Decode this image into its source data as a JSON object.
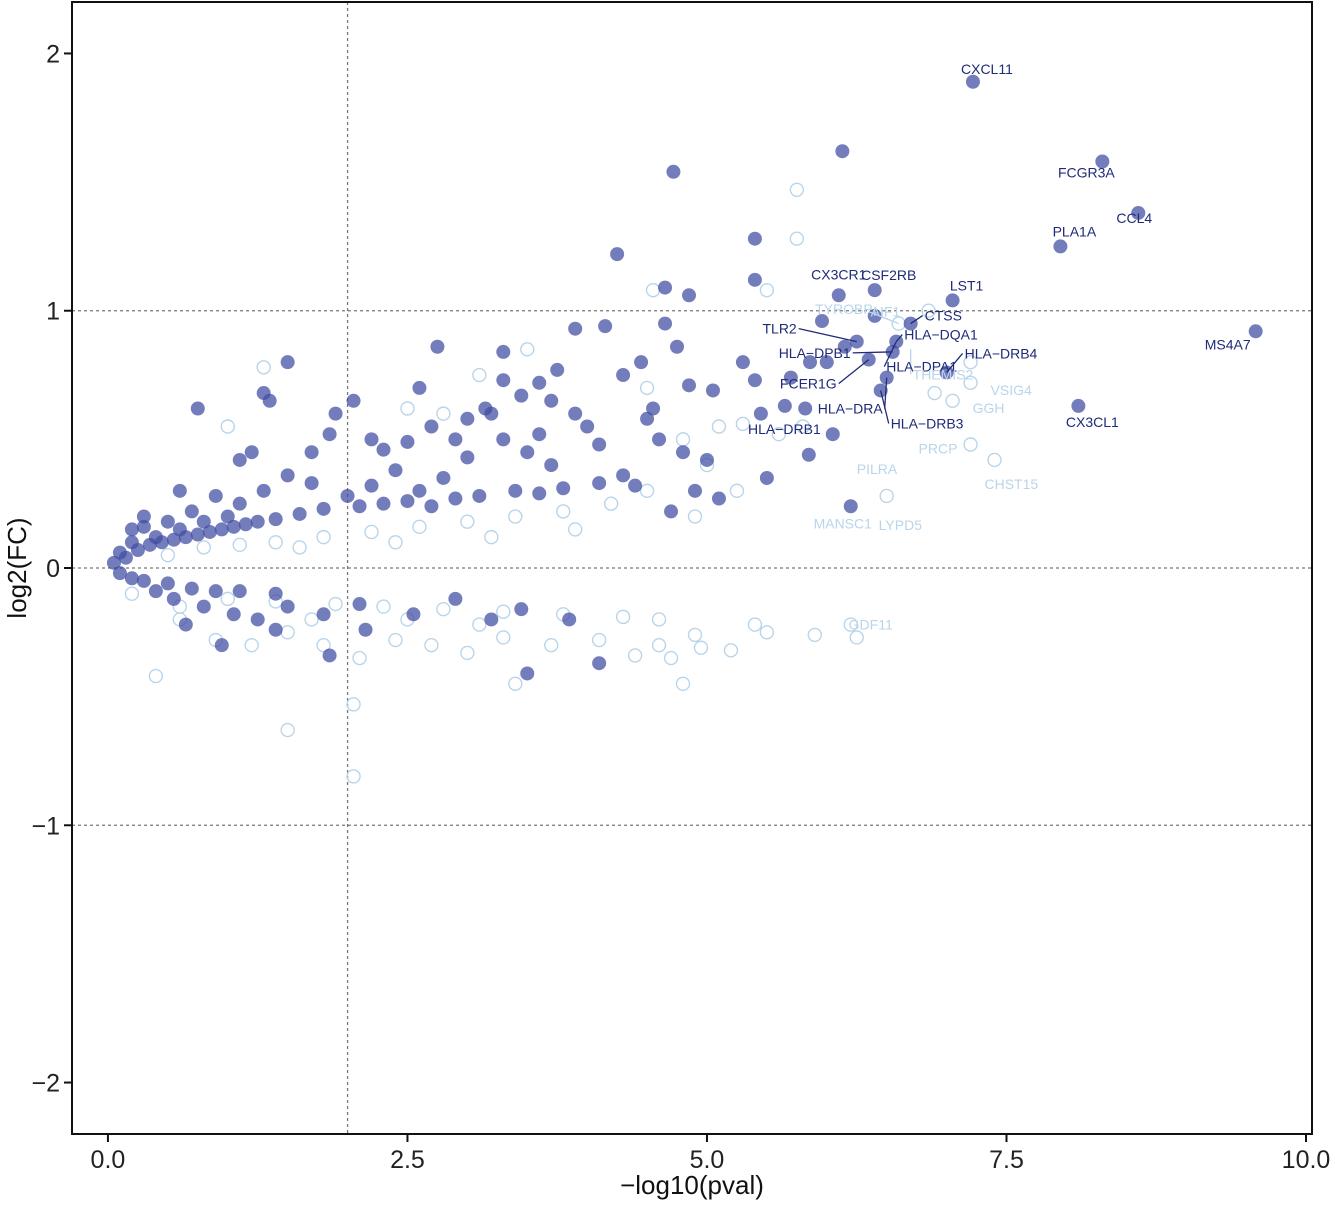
{
  "chart_data": {
    "type": "scatter",
    "title": "",
    "xlabel": "−log10(pval)",
    "ylabel": "log2(FC)",
    "xlim": [
      -0.3,
      10.05
    ],
    "ylim": [
      -2.2,
      2.2
    ],
    "x_ticks": [
      0.0,
      2.5,
      5.0,
      7.5,
      10.0
    ],
    "x_tick_labels": [
      "0.0",
      "2.5",
      "5.0",
      "7.5",
      "10.0"
    ],
    "y_ticks": [
      2,
      1,
      0,
      -1,
      -2
    ],
    "y_tick_labels": [
      "2",
      "1",
      "0",
      "−1",
      "−2"
    ],
    "reference_lines": {
      "vertical_x": [
        2.0
      ],
      "horizontal_y": [
        1.0,
        0.0,
        -1.0
      ],
      "style": "dotted"
    },
    "grid": false,
    "legend": "none",
    "colors": {
      "significant": "#3f4ba2",
      "significant_dense": "#20247d",
      "nonsignificant": "#b9d5ea",
      "label_significant": "#1f2a78",
      "label_nonsignificant": "#b9d5ea"
    },
    "series": [
      {
        "style": "filled",
        "points": [
          [
            7.22,
            1.89
          ],
          [
            6.13,
            1.62
          ],
          [
            4.72,
            1.54
          ],
          [
            8.3,
            1.58
          ],
          [
            8.6,
            1.38
          ],
          [
            7.95,
            1.25
          ],
          [
            4.25,
            1.22
          ],
          [
            5.4,
            1.28
          ],
          [
            5.4,
            1.12
          ],
          [
            4.65,
            1.09
          ],
          [
            4.85,
            1.06
          ],
          [
            6.1,
            1.06
          ],
          [
            6.4,
            1.08
          ],
          [
            7.05,
            1.04
          ],
          [
            9.58,
            0.92
          ],
          [
            6.4,
            0.98
          ],
          [
            6.7,
            0.95
          ],
          [
            5.96,
            0.96
          ],
          [
            6.25,
            0.88
          ],
          [
            6.58,
            0.88
          ],
          [
            6.15,
            0.86
          ],
          [
            6.55,
            0.84
          ],
          [
            7.0,
            0.76
          ],
          [
            6.35,
            0.81
          ],
          [
            6.5,
            0.74
          ],
          [
            6.45,
            0.69
          ],
          [
            5.86,
            0.8
          ],
          [
            6.0,
            0.8
          ],
          [
            5.82,
            0.62
          ],
          [
            8.1,
            0.63
          ],
          [
            6.05,
            0.52
          ],
          [
            6.2,
            0.24
          ],
          [
            5.85,
            0.44
          ],
          [
            5.4,
            0.73
          ],
          [
            5.7,
            0.74
          ],
          [
            5.65,
            0.63
          ],
          [
            5.45,
            0.6
          ],
          [
            5.3,
            0.8
          ],
          [
            5.05,
            0.69
          ],
          [
            4.85,
            0.71
          ],
          [
            4.75,
            0.86
          ],
          [
            4.65,
            0.95
          ],
          [
            4.55,
            0.62
          ],
          [
            4.45,
            0.8
          ],
          [
            4.3,
            0.75
          ],
          [
            4.15,
            0.94
          ],
          [
            3.9,
            0.93
          ],
          [
            3.75,
            0.77
          ],
          [
            3.6,
            0.72
          ],
          [
            3.45,
            0.67
          ],
          [
            3.3,
            0.84
          ],
          [
            3.3,
            0.73
          ],
          [
            3.15,
            0.62
          ],
          [
            2.75,
            0.86
          ],
          [
            2.6,
            0.7
          ],
          [
            1.5,
            0.8
          ],
          [
            1.3,
            0.68
          ],
          [
            1.35,
            0.65
          ],
          [
            0.75,
            0.62
          ],
          [
            1.1,
            0.42
          ],
          [
            2.05,
            0.65
          ],
          [
            1.9,
            0.6
          ],
          [
            1.85,
            0.52
          ],
          [
            2.5,
            0.49
          ],
          [
            2.3,
            0.46
          ],
          [
            2.7,
            0.55
          ],
          [
            3.0,
            0.58
          ],
          [
            3.2,
            0.6
          ],
          [
            3.7,
            0.65
          ],
          [
            3.9,
            0.6
          ],
          [
            4.0,
            0.55
          ],
          [
            4.5,
            0.58
          ],
          [
            4.6,
            0.5
          ],
          [
            4.8,
            0.45
          ],
          [
            5.0,
            0.42
          ],
          [
            5.5,
            0.35
          ],
          [
            5.1,
            0.27
          ],
          [
            4.9,
            0.3
          ],
          [
            4.7,
            0.22
          ],
          [
            4.4,
            0.32
          ],
          [
            3.7,
            0.4
          ],
          [
            3.5,
            0.45
          ],
          [
            3.3,
            0.5
          ],
          [
            3.0,
            0.43
          ],
          [
            2.8,
            0.35
          ],
          [
            2.6,
            0.3
          ],
          [
            2.4,
            0.38
          ],
          [
            2.2,
            0.32
          ],
          [
            2.0,
            0.28
          ],
          [
            1.7,
            0.33
          ],
          [
            1.5,
            0.36
          ],
          [
            1.3,
            0.3
          ],
          [
            1.1,
            0.25
          ],
          [
            1.0,
            0.2
          ],
          [
            0.9,
            0.28
          ],
          [
            0.8,
            0.18
          ],
          [
            0.7,
            0.22
          ],
          [
            0.6,
            0.15
          ],
          [
            0.5,
            0.18
          ],
          [
            0.4,
            0.12
          ],
          [
            0.3,
            0.16
          ],
          [
            0.2,
            0.1
          ],
          [
            0.1,
            0.06
          ],
          [
            0.05,
            0.02
          ],
          [
            0.15,
            0.04
          ],
          [
            0.25,
            0.07
          ],
          [
            0.35,
            0.09
          ],
          [
            0.45,
            0.1
          ],
          [
            0.55,
            0.11
          ],
          [
            0.65,
            0.12
          ],
          [
            0.75,
            0.13
          ],
          [
            0.85,
            0.14
          ],
          [
            0.95,
            0.15
          ],
          [
            1.05,
            0.16
          ],
          [
            1.15,
            0.17
          ],
          [
            1.25,
            0.18
          ],
          [
            1.4,
            0.19
          ],
          [
            1.6,
            0.21
          ],
          [
            1.8,
            0.23
          ],
          [
            2.1,
            0.24
          ],
          [
            2.3,
            0.25
          ],
          [
            2.5,
            0.26
          ],
          [
            2.7,
            0.24
          ],
          [
            2.9,
            0.27
          ],
          [
            3.1,
            0.28
          ],
          [
            3.4,
            0.3
          ],
          [
            3.6,
            0.29
          ],
          [
            3.8,
            0.31
          ],
          [
            4.1,
            0.33
          ],
          [
            4.3,
            0.36
          ],
          [
            0.3,
            0.2
          ],
          [
            0.2,
            0.15
          ],
          [
            0.6,
            0.3
          ],
          [
            1.2,
            0.45
          ],
          [
            1.7,
            0.45
          ],
          [
            2.2,
            0.5
          ],
          [
            2.9,
            0.5
          ],
          [
            3.6,
            0.52
          ],
          [
            4.1,
            0.48
          ],
          [
            0.1,
            -0.02
          ],
          [
            0.2,
            -0.04
          ],
          [
            0.3,
            -0.05
          ],
          [
            0.5,
            -0.06
          ],
          [
            0.7,
            -0.08
          ],
          [
            0.9,
            -0.09
          ],
          [
            1.1,
            -0.09
          ],
          [
            1.4,
            -0.1
          ],
          [
            0.65,
            -0.22
          ],
          [
            0.95,
            -0.3
          ],
          [
            1.5,
            -0.15
          ],
          [
            1.8,
            -0.18
          ],
          [
            2.1,
            -0.14
          ],
          [
            2.55,
            -0.18
          ],
          [
            2.9,
            -0.12
          ],
          [
            3.2,
            -0.2
          ],
          [
            3.45,
            -0.16
          ],
          [
            3.85,
            -0.2
          ],
          [
            4.1,
            -0.37
          ],
          [
            3.5,
            -0.41
          ],
          [
            1.85,
            -0.34
          ],
          [
            2.15,
            -0.24
          ],
          [
            1.4,
            -0.24
          ],
          [
            1.25,
            -0.2
          ],
          [
            1.05,
            -0.18
          ],
          [
            0.8,
            -0.15
          ],
          [
            0.55,
            -0.12
          ],
          [
            0.4,
            -0.09
          ]
        ]
      },
      {
        "style": "open",
        "points": [
          [
            5.75,
            1.47
          ],
          [
            5.75,
            1.28
          ],
          [
            4.55,
            1.08
          ],
          [
            5.5,
            1.08
          ],
          [
            6.85,
            1.0
          ],
          [
            6.6,
            0.95
          ],
          [
            7.2,
            0.8
          ],
          [
            7.2,
            0.72
          ],
          [
            6.9,
            0.68
          ],
          [
            7.05,
            0.65
          ],
          [
            7.2,
            0.48
          ],
          [
            6.5,
            0.28
          ],
          [
            7.4,
            0.42
          ],
          [
            5.8,
            0.55
          ],
          [
            5.6,
            0.52
          ],
          [
            5.3,
            0.56
          ],
          [
            5.0,
            0.4
          ],
          [
            4.5,
            0.3
          ],
          [
            4.2,
            0.25
          ],
          [
            3.8,
            0.22
          ],
          [
            3.4,
            0.2
          ],
          [
            3.0,
            0.18
          ],
          [
            2.6,
            0.16
          ],
          [
            2.2,
            0.14
          ],
          [
            1.8,
            0.12
          ],
          [
            1.4,
            0.1
          ],
          [
            1.1,
            0.09
          ],
          [
            0.8,
            0.08
          ],
          [
            0.5,
            0.05
          ],
          [
            1.0,
            0.55
          ],
          [
            1.3,
            0.78
          ],
          [
            2.5,
            0.62
          ],
          [
            2.8,
            0.6
          ],
          [
            3.5,
            0.85
          ],
          [
            3.1,
            0.75
          ],
          [
            4.5,
            0.7
          ],
          [
            4.8,
            0.5
          ],
          [
            5.1,
            0.55
          ],
          [
            5.25,
            0.3
          ],
          [
            4.9,
            0.2
          ],
          [
            3.9,
            0.15
          ],
          [
            3.2,
            0.12
          ],
          [
            2.4,
            0.1
          ],
          [
            1.6,
            0.08
          ],
          [
            6.2,
            -0.22
          ],
          [
            6.25,
            -0.27
          ],
          [
            5.9,
            -0.26
          ],
          [
            5.5,
            -0.25
          ],
          [
            5.2,
            -0.32
          ],
          [
            4.95,
            -0.31
          ],
          [
            4.7,
            -0.35
          ],
          [
            4.6,
            -0.3
          ],
          [
            4.4,
            -0.34
          ],
          [
            4.1,
            -0.28
          ],
          [
            3.7,
            -0.3
          ],
          [
            3.3,
            -0.27
          ],
          [
            3.0,
            -0.33
          ],
          [
            2.7,
            -0.3
          ],
          [
            2.4,
            -0.28
          ],
          [
            2.1,
            -0.35
          ],
          [
            1.8,
            -0.3
          ],
          [
            1.5,
            -0.25
          ],
          [
            1.2,
            -0.3
          ],
          [
            0.9,
            -0.28
          ],
          [
            0.6,
            -0.2
          ],
          [
            0.4,
            -0.42
          ],
          [
            2.05,
            -0.53
          ],
          [
            1.5,
            -0.63
          ],
          [
            2.05,
            -0.81
          ],
          [
            3.4,
            -0.45
          ],
          [
            4.8,
            -0.45
          ],
          [
            0.2,
            -0.1
          ],
          [
            0.6,
            -0.15
          ],
          [
            1.0,
            -0.12
          ],
          [
            1.4,
            -0.13
          ],
          [
            1.9,
            -0.14
          ],
          [
            2.3,
            -0.15
          ],
          [
            2.8,
            -0.16
          ],
          [
            3.3,
            -0.17
          ],
          [
            3.8,
            -0.18
          ],
          [
            4.3,
            -0.19
          ],
          [
            4.6,
            -0.2
          ],
          [
            5.4,
            -0.22
          ],
          [
            4.9,
            -0.26
          ],
          [
            3.1,
            -0.22
          ],
          [
            2.5,
            -0.2
          ],
          [
            1.7,
            -0.2
          ]
        ]
      }
    ],
    "annotations": [
      {
        "text": "CXCL11",
        "x": 7.22,
        "y": 1.89,
        "tone": "sig"
      },
      {
        "text": "FCGR3A",
        "x": 8.3,
        "y": 1.58,
        "tone": "sig"
      },
      {
        "text": "CCL4",
        "x": 8.6,
        "y": 1.38,
        "tone": "sig"
      },
      {
        "text": "PLA1A",
        "x": 7.95,
        "y": 1.25,
        "tone": "sig"
      },
      {
        "text": "CSF2RB",
        "x": 6.4,
        "y": 1.08,
        "tone": "sig"
      },
      {
        "text": "LST1",
        "x": 7.05,
        "y": 1.04,
        "tone": "sig"
      },
      {
        "text": "CX3CR1",
        "x": 6.1,
        "y": 1.06,
        "tone": "sig"
      },
      {
        "text": "AIF1",
        "x": 6.6,
        "y": 0.95,
        "tone": "nonsig"
      },
      {
        "text": "CTSS",
        "x": 6.7,
        "y": 0.95,
        "tone": "sig"
      },
      {
        "text": "TLR2",
        "x": 6.25,
        "y": 0.88,
        "tone": "sig"
      },
      {
        "text": "TYROBP",
        "x": 6.4,
        "y": 0.98,
        "tone": "nonsig"
      },
      {
        "text": "HLA−DQA1",
        "x": 6.58,
        "y": 0.88,
        "tone": "sig"
      },
      {
        "text": "MS4A7",
        "x": 9.58,
        "y": 0.92,
        "tone": "sig"
      },
      {
        "text": "HLA−DPB1",
        "x": 6.55,
        "y": 0.84,
        "tone": "sig"
      },
      {
        "text": "HLA−DRB4",
        "x": 7.0,
        "y": 0.76,
        "tone": "sig"
      },
      {
        "text": "HLA−DPA1",
        "x": 6.58,
        "y": 0.88,
        "tone": "sig"
      },
      {
        "text": "FCER1G",
        "x": 6.35,
        "y": 0.81,
        "tone": "sig"
      },
      {
        "text": "THEMIS2",
        "x": 6.7,
        "y": 0.85,
        "tone": "nonsig"
      },
      {
        "text": "VSIG4",
        "x": 7.2,
        "y": 0.72,
        "tone": "nonsig"
      },
      {
        "text": "HLA−DRA",
        "x": 6.5,
        "y": 0.74,
        "tone": "sig"
      },
      {
        "text": "GGH",
        "x": 7.05,
        "y": 0.65,
        "tone": "nonsig"
      },
      {
        "text": "CX3CL1",
        "x": 8.1,
        "y": 0.63,
        "tone": "sig"
      },
      {
        "text": "HLA−DRB1",
        "x": 6.05,
        "y": 0.52,
        "tone": "sig"
      },
      {
        "text": "HLA−DRB3",
        "x": 6.45,
        "y": 0.69,
        "tone": "sig"
      },
      {
        "text": "PILRA",
        "x": 6.0,
        "y": 0.42,
        "tone": "nonsig"
      },
      {
        "text": "PRCP",
        "x": 7.2,
        "y": 0.48,
        "tone": "nonsig"
      },
      {
        "text": "LYPD5",
        "x": 6.5,
        "y": 0.28,
        "tone": "nonsig"
      },
      {
        "text": "CHST15",
        "x": 7.4,
        "y": 0.42,
        "tone": "nonsig"
      },
      {
        "text": "MANSC1",
        "x": 6.2,
        "y": 0.24,
        "tone": "nonsig"
      },
      {
        "text": "GDF11",
        "x": 6.25,
        "y": -0.27,
        "tone": "nonsig"
      }
    ]
  }
}
